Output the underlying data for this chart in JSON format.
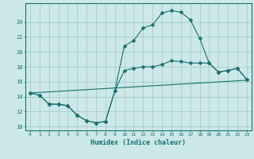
{
  "xlabel": "Humidex (Indice chaleur)",
  "xlim": [
    -0.5,
    23.5
  ],
  "ylim": [
    9.5,
    26.5
  ],
  "yticks": [
    10,
    12,
    14,
    16,
    18,
    20,
    22,
    24
  ],
  "xticks": [
    0,
    1,
    2,
    3,
    4,
    5,
    6,
    7,
    8,
    9,
    10,
    11,
    12,
    13,
    14,
    15,
    16,
    17,
    18,
    19,
    20,
    21,
    22,
    23
  ],
  "bg_color": "#cce8e8",
  "grid_color": "#aacccc",
  "line_color": "#1a7070",
  "curve1_x": [
    0,
    1,
    2,
    3,
    4,
    5,
    6,
    7,
    8,
    9,
    10,
    11,
    12,
    13,
    14,
    15,
    16,
    17,
    18,
    19,
    20,
    21,
    22,
    23
  ],
  "curve1_y": [
    14.5,
    14.2,
    13.0,
    13.0,
    12.8,
    11.5,
    10.8,
    10.5,
    10.7,
    14.8,
    20.8,
    21.5,
    23.2,
    23.6,
    25.2,
    25.5,
    25.3,
    24.3,
    21.8,
    18.5,
    17.3,
    17.5,
    17.8,
    16.3
  ],
  "curve2_x": [
    0,
    1,
    2,
    3,
    4,
    5,
    6,
    7,
    8,
    9,
    10,
    11,
    12,
    13,
    14,
    15,
    16,
    17,
    18,
    19,
    20,
    21,
    22,
    23
  ],
  "curve2_y": [
    14.5,
    14.2,
    13.0,
    13.0,
    12.8,
    11.5,
    10.8,
    10.5,
    10.7,
    14.8,
    17.5,
    17.8,
    18.0,
    18.0,
    18.3,
    18.8,
    18.7,
    18.5,
    18.5,
    18.5,
    17.3,
    17.5,
    17.8,
    16.3
  ],
  "curve3_x": [
    0,
    23
  ],
  "curve3_y": [
    14.5,
    16.2
  ]
}
